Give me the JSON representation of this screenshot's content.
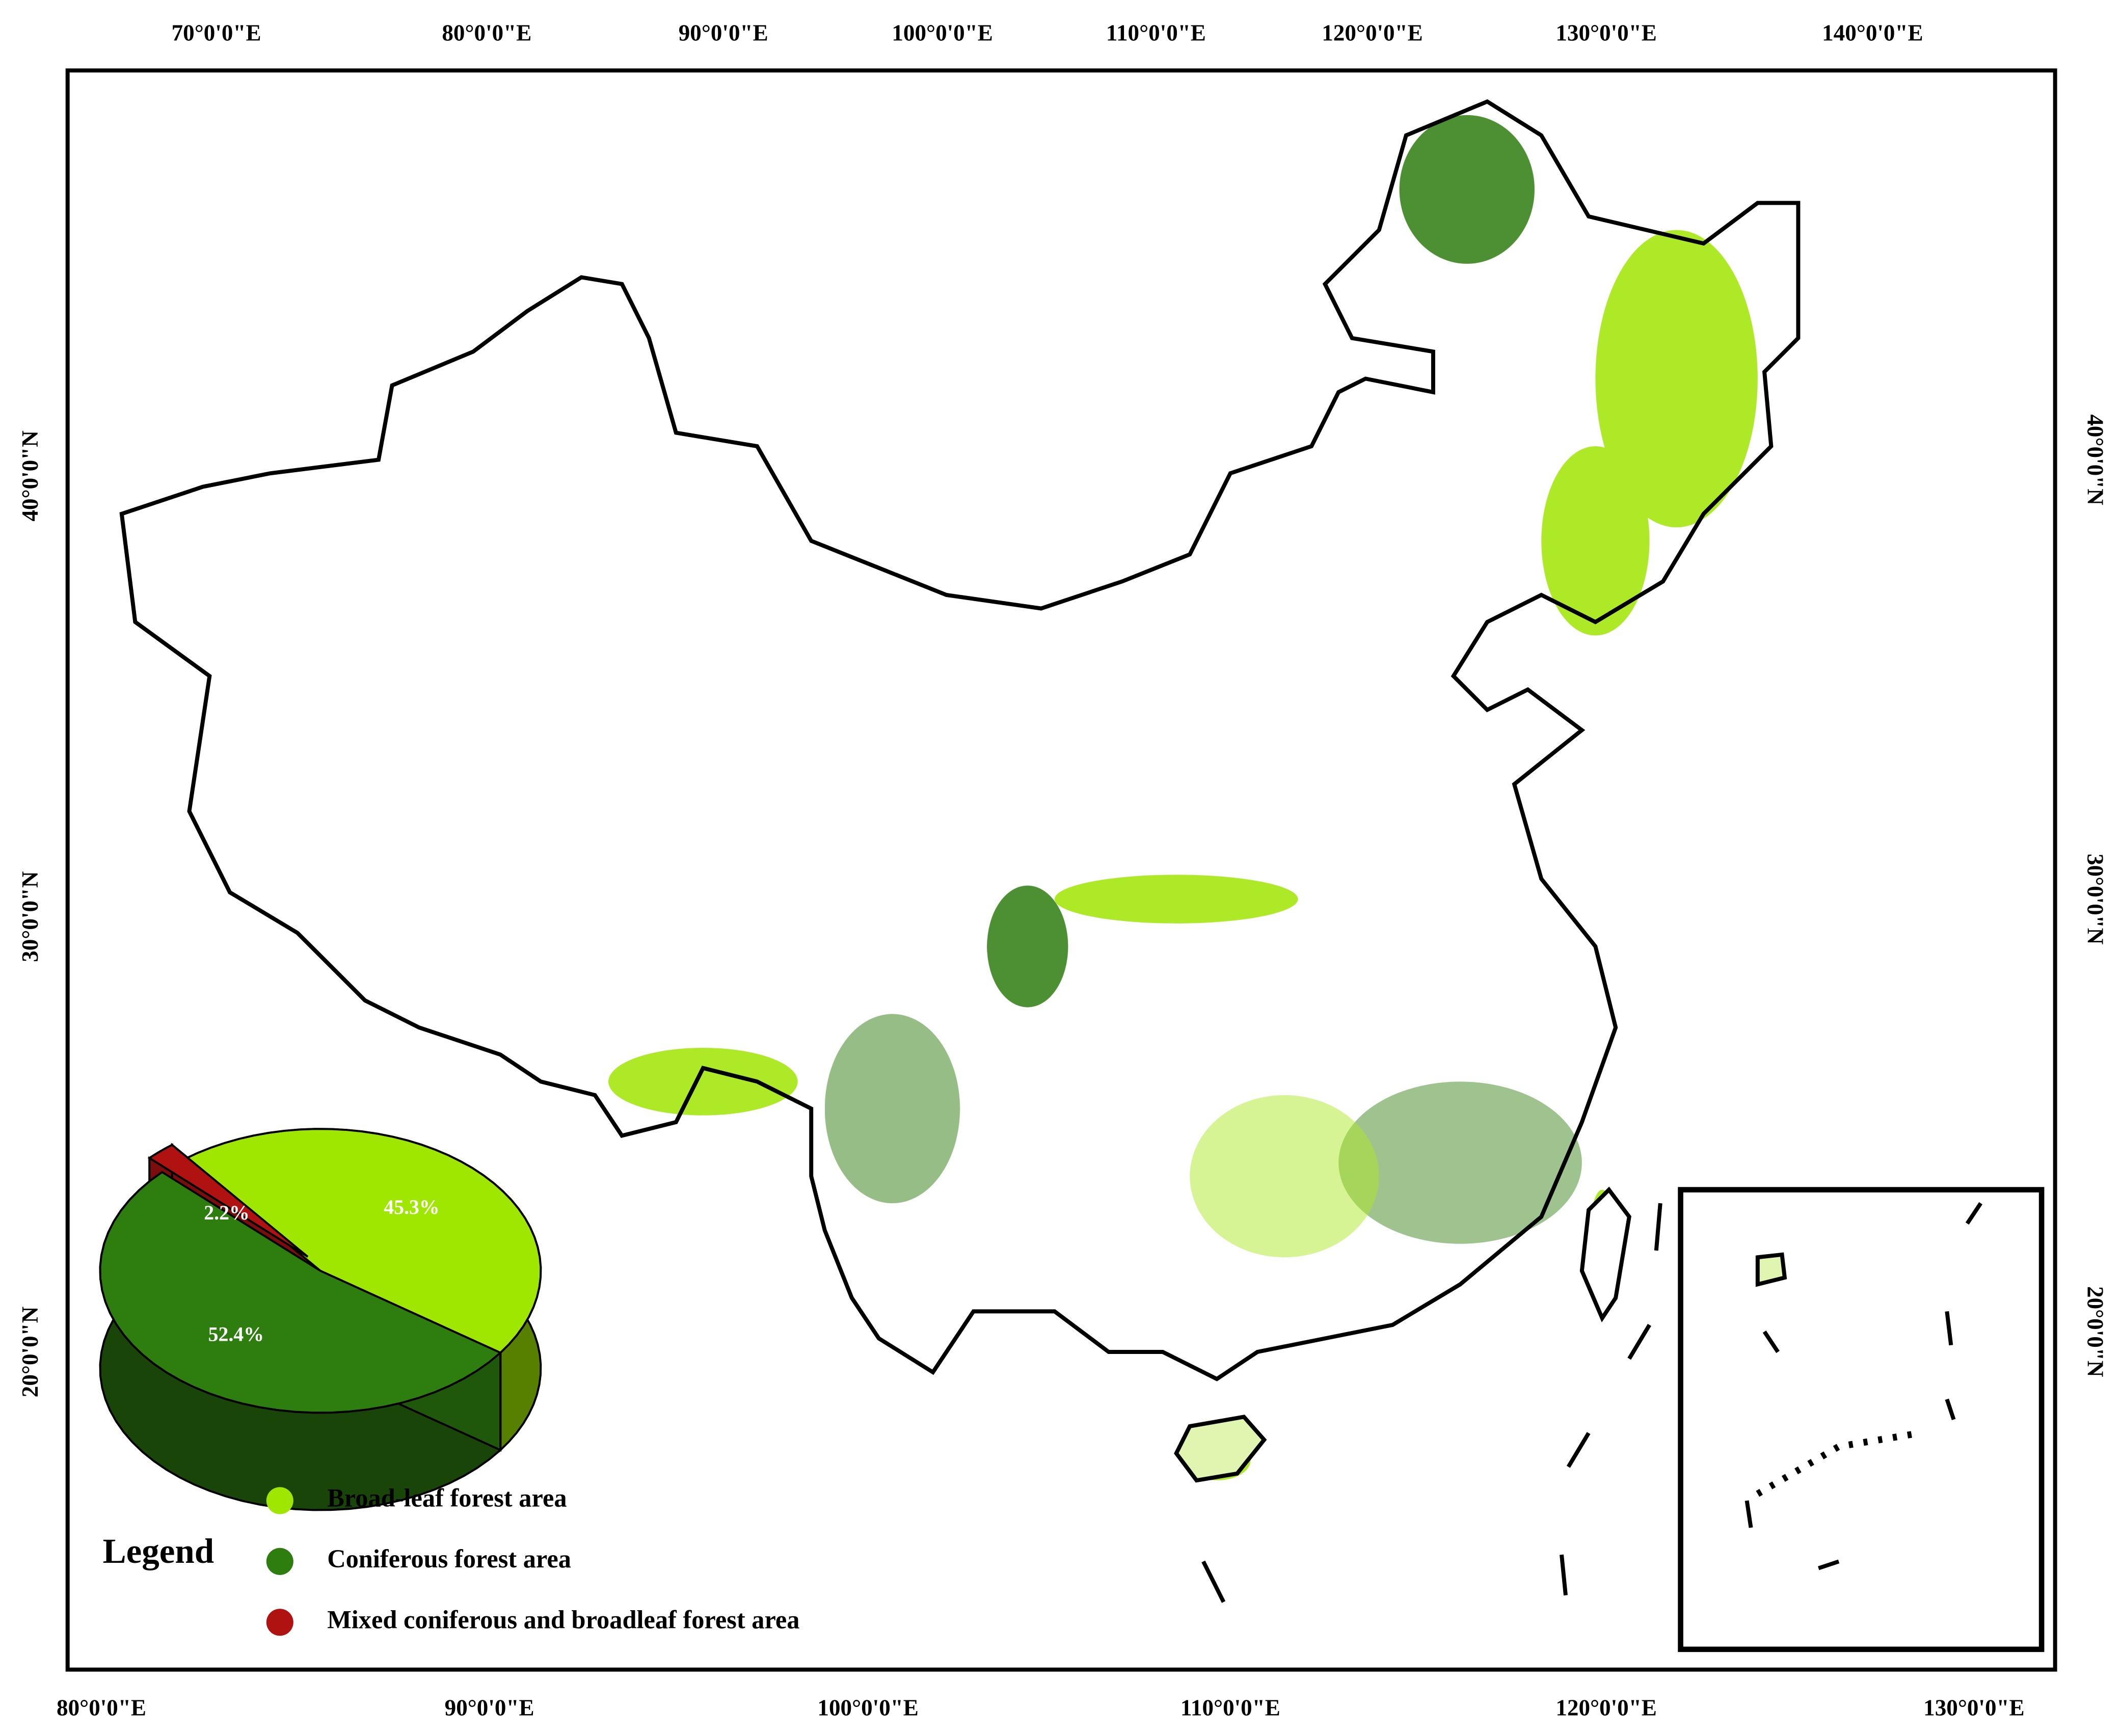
{
  "map": {
    "top_labels": [
      "70°0'0\"E",
      "80°0'0\"E",
      "90°0'0\"E",
      "100°0'0\"E",
      "110°0'0\"E",
      "120°0'0\"E",
      "130°0'0\"E",
      "140°0'0\"E"
    ],
    "bottom_labels": [
      "80°0'0\"E",
      "90°0'0\"E",
      "100°0'0\"E",
      "110°0'0\"E",
      "120°0'0\"E",
      "130°0'0\"E"
    ],
    "left_labels": [
      "40°0'0\"N",
      "30°0'0\"N",
      "20°0'0\"N"
    ],
    "right_labels": [
      "40°0'0\"N",
      "30°0'0\"N",
      "20°0'0\"N"
    ]
  },
  "chart_data": {
    "type": "pie",
    "legend_title": "Legend",
    "categories": [
      "Broad-leaf forest area",
      "Coniferous forest area",
      "Mixed coniferous and broadleaf forest area"
    ],
    "values": [
      45.3,
      52.4,
      2.2
    ],
    "value_labels": [
      "45.3%",
      "52.4%",
      "2.2%"
    ],
    "colors": [
      "#9fe600",
      "#2e7d0f",
      "#b01212"
    ]
  }
}
